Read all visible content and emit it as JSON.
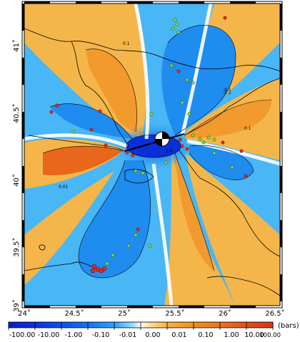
{
  "map": {
    "lon_ticks": [
      "24˚",
      "24.5˚",
      "25˚",
      "25.5˚",
      "26˚",
      "26.5˚"
    ],
    "lat_ticks": [
      "41˚",
      "40.5˚",
      "40˚",
      "39.5˚",
      "39˚"
    ],
    "lon_range": [
      24,
      26.5
    ],
    "lat_range": [
      39,
      41.25
    ],
    "contour_labels": [
      "0.1",
      "1.0",
      "0.01",
      "-0.1",
      "0.1",
      "-0.1"
    ],
    "colors": {
      "negative_strong": "#0a2fd8",
      "negative_mid": "#1f8cf0",
      "negative_weak": "#49b6f5",
      "neutral": "#ffffff",
      "positive_weak": "#f4b64a",
      "positive_mid": "#f29a2e",
      "positive_strong": "#e8671c",
      "coast": "#000000",
      "epicenter_red": "#e8291b",
      "aftershock_green": "#7ddc3a",
      "fault": "#000000"
    },
    "beachball_icon": "focal-mechanism-beachball-icon"
  },
  "colorbar": {
    "tick_labels": [
      "-100.00",
      "-10.00",
      "-1.00",
      "-0.10",
      "-0.01",
      "0.00",
      "0.01",
      "0.10",
      "1.00",
      "10.00",
      "100.00"
    ],
    "unit": "(bars)",
    "stops": [
      "#0b1ec9",
      "#0b33d9",
      "#0b53e6",
      "#0d77ee",
      "#2ba2f5",
      "#7ad1fa",
      "#ffffff",
      "#ffd980",
      "#f7b245",
      "#f28d26",
      "#e9641a",
      "#d93617"
    ]
  }
}
